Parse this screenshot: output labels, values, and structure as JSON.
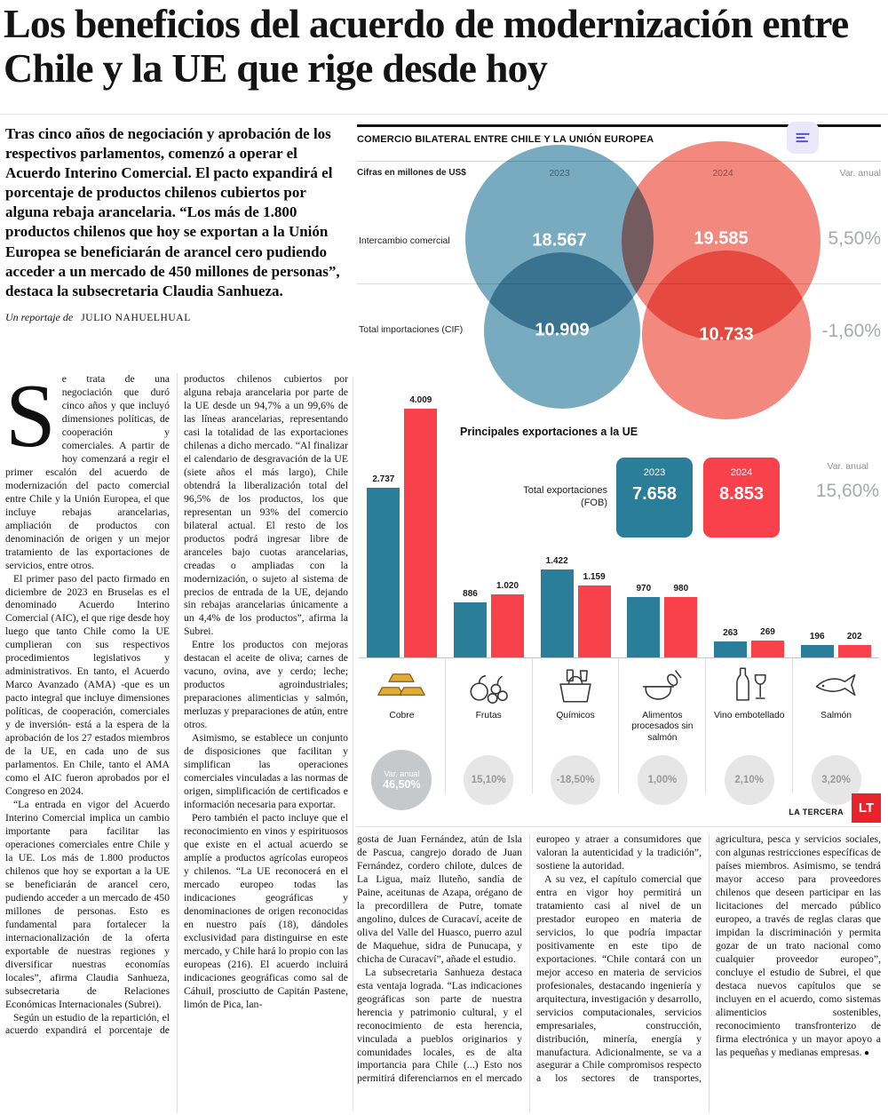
{
  "article": {
    "headline": "Los beneficios del acuerdo de modernización entre Chile y la UE que rige desde hoy",
    "lede": "Tras cinco años de negociación y aprobación de los respectivos parlamentos, comenzó a operar el Acuerdo Interino Comercial. El pacto expandirá el porcentaje de productos chilenos cubiertos por alguna rebaja arancelaria. “Los más de 1.800 productos chilenos que hoy se exportan a la Unión Europea se beneficiarán de arancel cero pudiendo acceder a un mercado de 450 millones de personas”, destaca la subsecretaria Claudia Sanhueza.",
    "byline_prefix": "Un reportaje de",
    "byline_author": "JULIO NAHUELHUAL",
    "end_mark": "●",
    "left_paragraphs": [
      "Se trata de una negociación que duró cinco años y que incluyó dimensiones políticas, de cooperación y comerciales. A partir de hoy comenzará a regir el primer escalón del acuerdo de modernización del pacto comercial entre Chile y la Unión Europea, el que incluye rebajas arancelarias, ampliación de productos con denominación de origen y un mejor tratamiento de las exportaciones de servicios, entre otros.",
      "El primer paso del pacto firmado en diciembre de 2023 en Bruselas es el denominado Acuerdo Interino Comercial (AIC), el que rige desde hoy luego que tanto Chile como la UE cumplieran con sus respectivos procedimientos legislativos y administrativos. En tanto, el Acuerdo Marco Avanzado (AMA) -que es un pacto integral que incluye dimensiones políticas, de cooperación, comerciales y de inversión- está a la espera de la aprobación de los 27 estados miembros de la UE, en cada uno de sus parlamentos. En Chile, tanto el AMA como el AIC fueron aprobados por el Congreso en 2024.",
      "“La entrada en vigor del Acuerdo Interino Comercial implica un cambio importante para facilitar las operaciones comerciales entre Chile y la UE. Los más de 1.800 productos chilenos que hoy se exportan a la UE se beneficiarán de arancel cero, pudiendo acceder a un mercado de 450 millones de personas. Esto es fundamental para fortalecer la internacionalización de la oferta exportable de nuestras regiones y diversificar nuestras economías locales”, afirma Claudia Sanhueza, subsecretaria de Relaciones Económicas Internacionales (Subrei).",
      "Según un estudio de la repartición, el acuerdo expandirá el porcentaje de productos chilenos cubiertos por alguna rebaja arancelaria por parte de la UE desde un 94,7% a un 99,6% de las líneas arancelarias, representando casi la totalidad de las exportaciones chilenas a dicho mercado. “Al finalizar el calendario de desgravación de la UE (siete años el más largo), Chile obtendrá la liberalización total del 96,5% de los productos, los que representan un 93% del comercio bilateral actual. El resto de los productos podrá ingresar libre de aranceles bajo cuotas arancelarias, creadas o ampliadas con la modernización, o sujeto al sistema de precios de entrada de la UE, dejando sin rebajas arancelarias únicamente a un 4,4% de los productos”, afirma la Subrei.",
      "Entre los productos con mejoras destacan el aceite de oliva; carnes de vacuno, ovina, ave y cerdo; leche; productos agroindustriales; preparaciones alimenticias y salmón, merluzas y preparaciones de atún, entre otros.",
      "Asimismo, se establece un conjunto de disposiciones que facilitan y simplifican las operaciones comerciales vinculadas a las normas de origen, simplificación de certificados e información necesaria para exportar.",
      "Pero también el pacto incluye que el reconocimiento en vinos y espirituosos que existe en el actual acuerdo se amplíe a productos agrícolas europeos y chilenos. “La UE reconocerá en el mercado europeo todas las indicaciones geográficas y denominaciones de origen reconocidas en nuestro país (18), dándoles exclusividad para distinguirse en este mercado, y Chile hará lo propio con las europeas (216). El acuerdo incluirá indicaciones geográficas como sal de Cáhuil, prosciutto de Capitán Pastene, limón de Pica, lan-"
    ],
    "bottom_paragraphs": [
      "gosta de Juan Fernández, atún de Isla de Pascua, cangrejo dorado de Juan Fernández, cordero chilote, dulces de La Ligua, maíz lluteño, sandía de Paine, aceitunas de Azapa, orégano de la precordillera de Putre, tomate angolino, dulces de Curacaví, aceite de oliva del Valle del Huasco, puerro azul de Maquehue, sidra de Punucapa, y chicha de Curacaví”, añade el estudio.",
      "La subsecretaria Sanhueza destaca esta ventaja lograda. “Las indicaciones geográficas son parte de nuestra herencia y patrimonio cultural, y el reconocimiento de esta herencia, vinculada a pueblos originarios y comunidades locales, es de alta importancia para Chile (...) Esto nos permitirá diferenciarnos en el mercado europeo y atraer a consumidores que valoran la autenticidad y la tradición”, sostiene la autoridad.",
      "A su vez, el capítulo comercial que entra en vigor hoy permitirá un tratamiento casi al nivel de un prestador europeo en materia de servicios, lo que podría impactar positivamente en este tipo de exportaciones. “Chile contará con un mejor acceso en materia de servicios profesionales, destacando ingeniería y arquitectura, investigación y desarrollo, servicios computacionales, servicios empresariales, construcción, distribución, minería, energía y manufactura. Adicionalmente, se va a asegurar a Chile compromisos respecto a los sectores de transportes, agricultura, pesca y servicios sociales, con algunas restricciones específicas de países miembros. Asimismo, se tendrá mayor acceso para proveedores chilenos que deseen participar en las licitaciones del mercado público europeo, a través de reglas claras que impidan la discriminación y permita gozar de un trato nacional como cualquier proveedor europeo”, concluye el estudio de Subrei, el que destaca nuevos capítulos que se incluyen en el acuerdo, como sistemas alimenticios sostenibles, reconocimiento transfronterizo de firma electrónica y un mayor apoyo a las pequeñas y medianas empresas."
    ]
  },
  "infographic": {
    "title": "COMERCIO BILATERAL ENTRE CHILE Y LA UNIÓN EUROPEA",
    "subtitle": "Cifras en millones de US$",
    "col_2023": "2023",
    "col_2024": "2024",
    "col_var": "Var. anual",
    "venn": {
      "rows": [
        {
          "label": "Intercambio comercial",
          "v2023": "18.567",
          "v2024": "19.585",
          "var": "5,50%"
        },
        {
          "label": "Total importaciones (CIF)",
          "v2023": "10.909",
          "v2024": "10.733",
          "var": "-1,60%"
        }
      ]
    },
    "exports": {
      "title": "Principales exportaciones a la UE",
      "total_label": "Total exportaciones (FOB)",
      "total_2023": "7.658",
      "total_2024": "8.853",
      "var_label": "Var. anual",
      "total_var": "15,60%",
      "var_circle_label": "Var. anual",
      "items": [
        {
          "name": "Cobre",
          "icon": "copper-ingots-icon",
          "v2023": 2737,
          "v2024": 4009,
          "d2023": "2.737",
          "d2024": "4.009",
          "var": "46,50%"
        },
        {
          "name": "Frutas",
          "icon": "fruits-icon",
          "v2023": 886,
          "v2024": 1020,
          "d2023": "886",
          "d2024": "1.020",
          "var": "15,10%"
        },
        {
          "name": "Químicos",
          "icon": "chemicals-basket-icon",
          "v2023": 1422,
          "v2024": 1159,
          "d2023": "1.422",
          "d2024": "1.159",
          "var": "-18,50%"
        },
        {
          "name": "Alimentos procesados sin salmón",
          "icon": "processed-foods-icon",
          "v2023": 970,
          "v2024": 980,
          "d2023": "970",
          "d2024": "980",
          "var": "1,00%"
        },
        {
          "name": "Vino embotellado",
          "icon": "wine-bottle-icon",
          "v2023": 263,
          "v2024": 269,
          "d2023": "263",
          "d2024": "269",
          "var": "2,10%"
        },
        {
          "name": "Salmón",
          "icon": "fish-icon",
          "v2023": 196,
          "v2024": 202,
          "d2023": "196",
          "d2024": "202",
          "var": "3,20%"
        }
      ]
    },
    "source": "LA TERCERA",
    "logo": "LT",
    "colors": {
      "blue": "#2b7e99",
      "red": "#f8414b",
      "venn_blue": "#79abc0",
      "venn_red": "#f2887e",
      "gray_value": "#a7abaf",
      "logo_red": "#e8232b",
      "chip_purple": "#5b4fd6"
    }
  },
  "chart_data": [
    {
      "type": "venn",
      "title": "Comercio bilateral entre Chile y la Unión Europea",
      "unit": "millones de US$",
      "columns": [
        "2023",
        "2024",
        "Var. anual"
      ],
      "rows": [
        {
          "label": "Intercambio comercial",
          "2023": 18567,
          "2024": 19585,
          "var_anual_pct": 5.5
        },
        {
          "label": "Total importaciones (CIF)",
          "2023": 10909,
          "2024": 10733,
          "var_anual_pct": -1.6
        }
      ]
    },
    {
      "type": "bar",
      "title": "Principales exportaciones a la UE",
      "categories": [
        "Cobre",
        "Frutas",
        "Químicos",
        "Alimentos procesados sin salmón",
        "Vino embotellado",
        "Salmón"
      ],
      "series": [
        {
          "name": "2023",
          "values": [
            2737,
            886,
            1422,
            970,
            263,
            196
          ]
        },
        {
          "name": "2024",
          "values": [
            4009,
            1020,
            1159,
            980,
            269,
            202
          ]
        }
      ],
      "var_anual_pct": [
        46.5,
        15.1,
        -18.5,
        1.0,
        2.1,
        3.2
      ],
      "totals": {
        "label": "Total exportaciones (FOB)",
        "2023": 7658,
        "2024": 8853,
        "var_anual_pct": 15.6
      },
      "legend_colors": {
        "2023": "#2b7e99",
        "2024": "#f8414b"
      },
      "ylim": [
        0,
        4009
      ],
      "grid": false,
      "source": "LA TERCERA"
    }
  ]
}
